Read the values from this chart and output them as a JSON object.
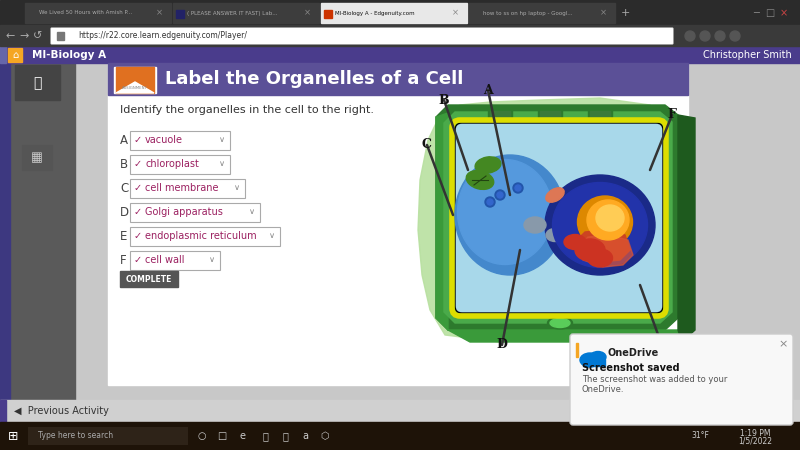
{
  "title": "Label the Organelles of a Cell",
  "instruction": "Identify the organelles in the cell to the right.",
  "answers": [
    [
      "A",
      "vacuole"
    ],
    [
      "B",
      "chloroplast"
    ],
    [
      "C",
      "cell membrane"
    ],
    [
      "D",
      "Golgi apparatus"
    ],
    [
      "E",
      "endoplasmic reticulum"
    ],
    [
      "F",
      "cell wall"
    ]
  ],
  "header_bg": "#4a3c8c",
  "header_text": "#ffffff",
  "tab_bar_bg": "#2b2b2b",
  "addr_bar_bg": "#3a3a3a",
  "content_outer_bg": "#d8d8d8",
  "content_card_bg": "#ffffff",
  "assign_header_bg": "#5b5097",
  "title_color": "#ffffff",
  "instruction_color": "#333333",
  "label_color": "#555555",
  "answer_color": "#9b2060",
  "check_color": "#9b2060",
  "complete_bg": "#555555",
  "complete_text": "#ffffff",
  "url": "https://r22.core.learn.edgenuity.com/Player/",
  "site_name": "MI-Biology A",
  "user_name": "Christopher Smith",
  "prev_activity": "Previous Activity",
  "onedrive_title": "OneDrive",
  "onedrive_line1": "Screenshot saved",
  "onedrive_line2": "The screenshot was added to your",
  "onedrive_line3": "OneDrive.",
  "tab_names": [
    "We Lived 50 Hours with Amish P...",
    "( PLEASE ANSWER IT FAST) Lab...",
    "MI-Biology A - Edgenuity.com",
    "how to ss on hp laptop - Googl..."
  ],
  "active_tab_idx": 2,
  "taskbar_bg": "#1e1308",
  "time_text": "1:19 PM",
  "date_text": "1/5/2022",
  "temp_text": "31°F",
  "left_sidebar_bg": "#5a5a5a",
  "left_nav_bg": "#3d3880"
}
